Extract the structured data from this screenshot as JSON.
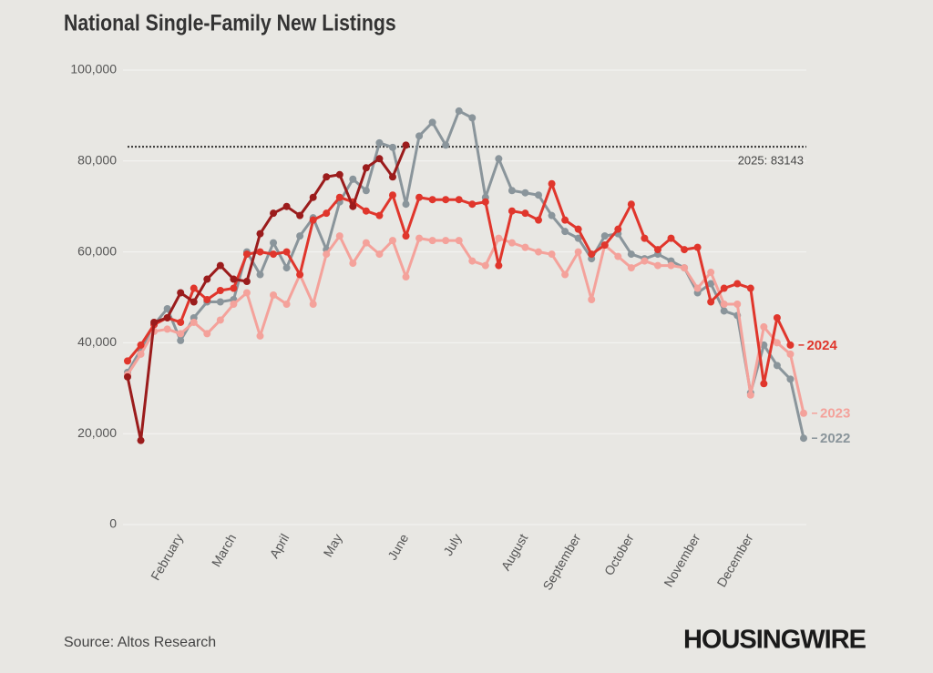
{
  "chart_data": {
    "type": "line",
    "title": "National Single-Family New Listings",
    "source": "Source: Altos Research",
    "brand": "HOUSINGWIRE",
    "categories": [
      null,
      null,
      null,
      null,
      "February",
      null,
      null,
      null,
      "March",
      null,
      null,
      null,
      "April",
      null,
      null,
      null,
      "May",
      null,
      null,
      null,
      null,
      "June",
      null,
      null,
      null,
      "July",
      null,
      null,
      null,
      null,
      "August",
      null,
      null,
      null,
      "September",
      null,
      null,
      null,
      "October",
      null,
      null,
      null,
      null,
      "November",
      null,
      null,
      null,
      "December",
      null,
      null,
      null,
      null
    ],
    "ylim": [
      0,
      100000
    ],
    "yticks": [
      0,
      {
        "value": 20000,
        "label": "20,000"
      },
      {
        "value": 40000,
        "label": "40,000"
      },
      {
        "value": 60000,
        "label": "60,000"
      },
      {
        "value": 80000,
        "label": "80,000"
      },
      {
        "value": 100000,
        "label": "100,000"
      }
    ],
    "grid": true,
    "reference_line": {
      "value": 83143,
      "label": "2025: 83143"
    },
    "series": [
      {
        "name": "2022",
        "color": "#8a959b",
        "values": [
          33500,
          38500,
          44000,
          47500,
          40500,
          45500,
          49000,
          49000,
          49500,
          60000,
          55000,
          62000,
          56500,
          63500,
          67500,
          60500,
          71000,
          76000,
          73500,
          84000,
          83000,
          70500,
          85500,
          88500,
          83500,
          91000,
          89500,
          72000,
          80500,
          73500,
          73000,
          72500,
          68000,
          64500,
          63000,
          58500,
          63500,
          64000,
          59500,
          58500,
          59500,
          58000,
          56500,
          51000,
          53000,
          47000,
          46000,
          29000,
          39500,
          35000,
          32000,
          19000
        ]
      },
      {
        "name": "2023",
        "color": "#f4a29b",
        "values": [
          33000,
          37500,
          42500,
          43000,
          42000,
          44500,
          42000,
          45000,
          48500,
          51000,
          41500,
          50500,
          48500,
          55000,
          48500,
          59500,
          63500,
          57500,
          62000,
          59500,
          62500,
          54500,
          63000,
          62500,
          62500,
          62500,
          58000,
          57000,
          63000,
          62000,
          61000,
          60000,
          59500,
          55000,
          60000,
          49500,
          61500,
          59000,
          56500,
          58000,
          57000,
          57000,
          56500,
          52000,
          55500,
          48500,
          48500,
          28500,
          43500,
          40000,
          37500,
          24500
        ]
      },
      {
        "name": "2024",
        "color": "#e0362c",
        "values": [
          36000,
          39500,
          44000,
          45500,
          44500,
          52000,
          49500,
          51500,
          52000,
          59500,
          60000,
          59500,
          60000,
          55000,
          67000,
          68500,
          72000,
          71000,
          69000,
          68000,
          72500,
          63500,
          72000,
          71500,
          71500,
          71500,
          70500,
          71000,
          57000,
          69000,
          68500,
          67000,
          75000,
          67000,
          65000,
          59500,
          61500,
          65000,
          70500,
          63000,
          60500,
          63000,
          60500,
          61000,
          49000,
          52000,
          53000,
          52000,
          31000,
          45500,
          39500,
          null
        ]
      },
      {
        "color": "#9b1c1c",
        "values": [
          32500,
          18500,
          44500,
          45500,
          51000,
          49000,
          54000,
          57000,
          54000,
          53500,
          64000,
          68500,
          70000,
          68000,
          72000,
          76500,
          77000,
          70000,
          78500,
          80500,
          76500,
          83500,
          null,
          null,
          null,
          null,
          null,
          null,
          null,
          null,
          null,
          null,
          null,
          null,
          null,
          null,
          null,
          null,
          null,
          null,
          null,
          null,
          null,
          null,
          null,
          null,
          null,
          null,
          null,
          null,
          null,
          null
        ]
      }
    ]
  }
}
